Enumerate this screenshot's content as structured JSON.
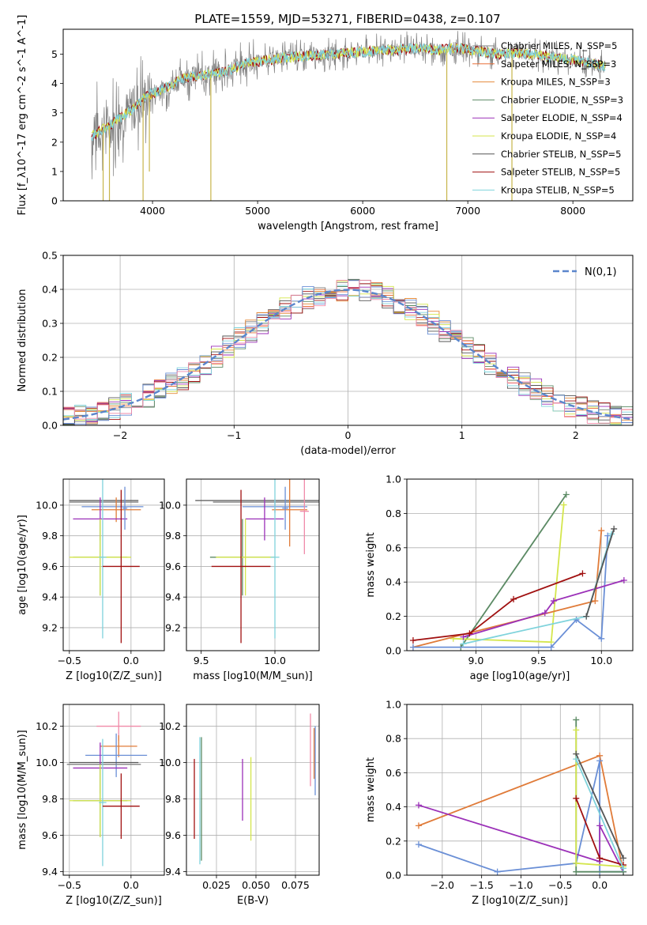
{
  "figure_title": "PLATE=1559, MJD=53271, FIBERID=0438, z=0.107",
  "colors": {
    "chabrier_miles": "#808080",
    "salpeter_miles": "#e8703a",
    "kroupa_miles": "#e58c3c",
    "chabrier_elodie": "#5b8a64",
    "salpeter_elodie": "#9b30b8",
    "kroupa_elodie": "#d4e64c",
    "chabrier_stelib": "#555555",
    "salpeter_stelib": "#a01010",
    "kroupa_stelib": "#7fd3dc",
    "orange": "#e07b39",
    "blue": "#6a8fd6",
    "pink": "#f08aa8",
    "normal": "#5b86cc"
  },
  "chart_data": [
    {
      "id": "spectrum",
      "type": "line",
      "xlabel": "wavelength [Angstrom, rest frame]",
      "ylabel": "Flux [f_λ10^-17 erg cm^-2 s^-1 A^-1]",
      "xlim": [
        3150,
        8570
      ],
      "ylim": [
        0,
        5.85
      ],
      "xticks": [
        "4000",
        "5000",
        "6000",
        "7000",
        "8000"
      ],
      "yticks": [
        "0",
        "1",
        "2",
        "3",
        "4",
        "5"
      ],
      "legend": [
        {
          "label": "Chabrier MILES, N_SSP=5",
          "color": "#808080"
        },
        {
          "label": "Salpeter MILES, N_SSP=3",
          "color": "#e8703a"
        },
        {
          "label": "Kroupa MILES, N_SSP=3",
          "color": "#e58c3c"
        },
        {
          "label": "Chabrier ELODIE, N_SSP=3",
          "color": "#5b8a64"
        },
        {
          "label": "Salpeter ELODIE, N_SSP=4",
          "color": "#9b30b8"
        },
        {
          "label": "Kroupa ELODIE, N_SSP=4",
          "color": "#d4e64c"
        },
        {
          "label": "Chabrier STELIB, N_SSP=5",
          "color": "#555555"
        },
        {
          "label": "Salpeter STELIB, N_SSP=5",
          "color": "#a01010"
        },
        {
          "label": "Kroupa STELIB, N_SSP=5",
          "color": "#7fd3dc"
        }
      ],
      "continuum": [
        [
          3420,
          2.2
        ],
        [
          3600,
          2.6
        ],
        [
          3800,
          3.1
        ],
        [
          3950,
          3.6
        ],
        [
          4100,
          3.8
        ],
        [
          4300,
          4.2
        ],
        [
          4500,
          4.3
        ],
        [
          4700,
          4.4
        ],
        [
          4900,
          4.7
        ],
        [
          5100,
          4.8
        ],
        [
          5300,
          4.9
        ],
        [
          5500,
          4.95
        ],
        [
          5700,
          5.0
        ],
        [
          5900,
          5.05
        ],
        [
          6100,
          5.1
        ],
        [
          6300,
          5.15
        ],
        [
          6500,
          5.2
        ],
        [
          6700,
          5.15
        ],
        [
          6900,
          5.2
        ],
        [
          7100,
          5.1
        ],
        [
          7300,
          5.0
        ],
        [
          7500,
          5.05
        ],
        [
          7700,
          4.95
        ],
        [
          7900,
          4.85
        ],
        [
          8100,
          4.75
        ],
        [
          8300,
          4.6
        ]
      ],
      "dips": [
        {
          "x": 3530,
          "y": 0
        },
        {
          "x": 3590,
          "y": 0
        },
        {
          "x": 3910,
          "y": 0
        },
        {
          "x": 3970,
          "y": 1.0
        },
        {
          "x": 4555,
          "y": 0
        },
        {
          "x": 6800,
          "y": 0
        },
        {
          "x": 7420,
          "y": 0
        }
      ]
    },
    {
      "id": "residuals",
      "type": "histogram",
      "xlabel": "(data-model)/error",
      "ylabel": "Normed distribution",
      "xlim": [
        -2.5,
        2.5
      ],
      "ylim": [
        0,
        0.5
      ],
      "xticks": [
        "-2",
        "-1",
        "0",
        "1",
        "2"
      ],
      "yticks": [
        "0.0",
        "0.1",
        "0.2",
        "0.3",
        "0.4",
        "0.5"
      ],
      "legend_label": "N(0,1)",
      "bin_width": 0.1,
      "series_colors": [
        "#808080",
        "#e8703a",
        "#e58c3c",
        "#5b8a64",
        "#9b30b8",
        "#d4e64c",
        "#555555",
        "#a01010",
        "#7fd3dc",
        "#6a8fd6",
        "#f08aa8"
      ]
    },
    {
      "id": "age_vs_Z",
      "type": "errorbar",
      "xlabel": "Z [log10(Z/Z_sun)]",
      "ylabel": "age [log10(age/yr)]",
      "xlim": [
        -0.55,
        0.27
      ],
      "ylim": [
        9.05,
        10.17
      ],
      "xticks": [
        "-0.5",
        "0.0"
      ],
      "yticks": [
        "9.2",
        "9.4",
        "9.6",
        "9.8",
        "10.0"
      ],
      "points": [
        {
          "x": -0.22,
          "y": 10.03,
          "xerr": 0.28,
          "yerr": 0.0,
          "color": "#555555"
        },
        {
          "x": -0.22,
          "y": 10.02,
          "xerr": 0.28,
          "yerr": 0.0,
          "color": "#808080"
        },
        {
          "x": -0.15,
          "y": 9.99,
          "xerr": 0.25,
          "yerr": 0.0,
          "color": "#6a8fd6"
        },
        {
          "x": -0.12,
          "y": 9.97,
          "xerr": 0.2,
          "yerr": 0.08,
          "color": "#e07b39"
        },
        {
          "x": -0.25,
          "y": 9.91,
          "xerr": 0.22,
          "yerr": 0.14,
          "color": "#9b30b8"
        },
        {
          "x": -0.25,
          "y": 9.66,
          "xerr": 0.22,
          "yerr": 0.25,
          "color": "#5b8a64"
        },
        {
          "x": -0.25,
          "y": 9.66,
          "xerr": 0.25,
          "yerr": 0.25,
          "color": "#d4e64c"
        },
        {
          "x": -0.23,
          "y": 9.66,
          "xerr": 0.03,
          "yerr": 0.53,
          "color": "#7fd3dc"
        },
        {
          "x": -0.08,
          "y": 9.6,
          "xerr": 0.15,
          "yerr": 0.5,
          "color": "#a01010"
        },
        {
          "x": -0.05,
          "y": 9.98,
          "xerr": 0.02,
          "yerr": 0.14,
          "color": "#6a8fd6"
        }
      ]
    },
    {
      "id": "age_vs_mass",
      "type": "errorbar",
      "xlabel": "mass [log10(M/M_sun)]",
      "ylabel": "",
      "xlim": [
        9.4,
        10.3
      ],
      "ylim": [
        9.05,
        10.17
      ],
      "xticks": [
        "9.5",
        "10.0"
      ],
      "yticks": [
        "9.2",
        "9.4",
        "9.6",
        "9.8",
        "10.0"
      ],
      "points": [
        {
          "x": 9.9,
          "y": 10.03,
          "xerr": 0.44,
          "yerr": 0.0,
          "color": "#555555"
        },
        {
          "x": 9.97,
          "y": 10.02,
          "xerr": 0.39,
          "yerr": 0.0,
          "color": "#808080"
        },
        {
          "x": 10.0,
          "y": 9.99,
          "xerr": 0.22,
          "yerr": 0.04,
          "color": "#6a8fd6"
        },
        {
          "x": 10.1,
          "y": 9.97,
          "xerr": 0.12,
          "yerr": 0.24,
          "color": "#e07b39"
        },
        {
          "x": 9.93,
          "y": 9.91,
          "xerr": 0.13,
          "yerr": 0.14,
          "color": "#9b30b8"
        },
        {
          "x": 9.78,
          "y": 9.66,
          "xerr": 0.22,
          "yerr": 0.25,
          "color": "#5b8a64"
        },
        {
          "x": 9.8,
          "y": 9.66,
          "xerr": 0.2,
          "yerr": 0.25,
          "color": "#d4e64c"
        },
        {
          "x": 10.0,
          "y": 9.66,
          "xerr": 0.03,
          "yerr": 0.53,
          "color": "#7fd3dc"
        },
        {
          "x": 9.77,
          "y": 9.6,
          "xerr": 0.2,
          "yerr": 0.5,
          "color": "#a01010"
        },
        {
          "x": 10.2,
          "y": 9.96,
          "xerr": 0.03,
          "yerr": 0.28,
          "color": "#f08aa8"
        },
        {
          "x": 10.07,
          "y": 9.98,
          "xerr": 0.02,
          "yerr": 0.14,
          "color": "#6a8fd6"
        }
      ]
    },
    {
      "id": "mass_weight_vs_age",
      "type": "line",
      "xlabel": "age [log10(age/yr)]",
      "ylabel": "mass weight",
      "xlim": [
        8.45,
        10.25
      ],
      "ylim": [
        0,
        1.0
      ],
      "xticks": [
        "9.0",
        "9.5",
        "10.0"
      ],
      "yticks": [
        "0.0",
        "0.2",
        "0.4",
        "0.6",
        "0.8",
        "1.0"
      ],
      "series": [
        {
          "color": "#5b8a64",
          "x": [
            8.88,
            9.72
          ],
          "y": [
            0.02,
            0.91
          ]
        },
        {
          "color": "#d4e64c",
          "x": [
            8.82,
            9.6,
            9.7
          ],
          "y": [
            0.07,
            0.05,
            0.85
          ]
        },
        {
          "color": "#e07b39",
          "x": [
            8.5,
            9.95,
            10.0
          ],
          "y": [
            0.02,
            0.29,
            0.7
          ]
        },
        {
          "color": "#6a8fd6",
          "x": [
            8.5,
            9.6,
            9.8,
            10.0,
            10.05
          ],
          "y": [
            0.02,
            0.02,
            0.18,
            0.07,
            0.67
          ]
        },
        {
          "color": "#9b30b8",
          "x": [
            8.9,
            9.55,
            9.62,
            10.18
          ],
          "y": [
            0.08,
            0.22,
            0.29,
            0.41
          ]
        },
        {
          "color": "#a01010",
          "x": [
            8.5,
            8.95,
            9.3,
            9.85
          ],
          "y": [
            0.06,
            0.1,
            0.3,
            0.45
          ]
        },
        {
          "color": "#7fd3dc",
          "x": [
            8.9,
            9.88,
            10.08
          ],
          "y": [
            0.04,
            0.2,
            0.68
          ]
        },
        {
          "color": "#555555",
          "x": [
            9.88,
            10.1
          ],
          "y": [
            0.2,
            0.71
          ]
        }
      ]
    },
    {
      "id": "mass_vs_Z",
      "type": "errorbar",
      "xlabel": "Z [log10(Z/Z_sun)]",
      "ylabel": "mass [log10(M/M_sun)]",
      "xlim": [
        -0.55,
        0.27
      ],
      "ylim": [
        9.38,
        10.32
      ],
      "xticks": [
        "-0.5",
        "0.0"
      ],
      "yticks": [
        "9.4",
        "9.6",
        "9.8",
        "10.0",
        "10.2"
      ],
      "points": [
        {
          "x": -0.1,
          "y": 10.2,
          "xerr": 0.18,
          "yerr": 0.08,
          "color": "#f08aa8"
        },
        {
          "x": -0.1,
          "y": 10.09,
          "xerr": 0.15,
          "yerr": 0.06,
          "color": "#e07b39"
        },
        {
          "x": -0.12,
          "y": 10.04,
          "xerr": 0.25,
          "yerr": 0.12,
          "color": "#6a8fd6"
        },
        {
          "x": -0.22,
          "y": 10.0,
          "xerr": 0.28,
          "yerr": 0.0,
          "color": "#555555"
        },
        {
          "x": -0.22,
          "y": 9.99,
          "xerr": 0.3,
          "yerr": 0.0,
          "color": "#808080"
        },
        {
          "x": -0.25,
          "y": 9.97,
          "xerr": 0.22,
          "yerr": 0.14,
          "color": "#9b30b8"
        },
        {
          "x": -0.25,
          "y": 9.79,
          "xerr": 0.22,
          "yerr": 0.2,
          "color": "#5b8a64"
        },
        {
          "x": -0.25,
          "y": 9.79,
          "xerr": 0.25,
          "yerr": 0.2,
          "color": "#d4e64c"
        },
        {
          "x": -0.23,
          "y": 9.78,
          "xerr": 0.03,
          "yerr": 0.35,
          "color": "#7fd3dc"
        },
        {
          "x": -0.08,
          "y": 9.76,
          "xerr": 0.15,
          "yerr": 0.18,
          "color": "#a01010"
        }
      ]
    },
    {
      "id": "mass_vs_ebv",
      "type": "errorbar",
      "xlabel": "E(B-V)",
      "ylabel": "",
      "xlim": [
        0.006,
        0.09
      ],
      "ylim": [
        9.38,
        10.32
      ],
      "xticks": [
        "0.025",
        "0.050",
        "0.075"
      ],
      "yticks": [
        "9.4",
        "9.6",
        "9.8",
        "10.0",
        "10.2"
      ],
      "points": [
        {
          "x": 0.011,
          "y": 9.8,
          "xerr": 0.0,
          "yerr": 0.22,
          "color": "#a01010"
        },
        {
          "x": 0.0145,
          "y": 9.79,
          "xerr": 0.0,
          "yerr": 0.35,
          "color": "#7fd3dc"
        },
        {
          "x": 0.0155,
          "y": 9.8,
          "xerr": 0.0,
          "yerr": 0.34,
          "color": "#5b8a64"
        },
        {
          "x": 0.0415,
          "y": 9.85,
          "xerr": 0.0,
          "yerr": 0.17,
          "color": "#9b30b8"
        },
        {
          "x": 0.0468,
          "y": 9.8,
          "xerr": 0.0,
          "yerr": 0.23,
          "color": "#d4e64c"
        },
        {
          "x": 0.0845,
          "y": 10.07,
          "xerr": 0.0,
          "yerr": 0.2,
          "color": "#f08aa8"
        },
        {
          "x": 0.0868,
          "y": 10.05,
          "xerr": 0.0,
          "yerr": 0.14,
          "color": "#e07b39"
        },
        {
          "x": 0.0875,
          "y": 10.01,
          "xerr": 0.0,
          "yerr": 0.19,
          "color": "#6a8fd6"
        }
      ]
    },
    {
      "id": "mass_weight_vs_Z",
      "type": "line",
      "xlabel": "Z [log10(Z/Z_sun)]",
      "ylabel": "mass weight",
      "xlim": [
        -2.45,
        0.42
      ],
      "ylim": [
        0,
        1.0
      ],
      "xticks": [
        "-2.0",
        "-1.5",
        "-1.0",
        "-0.5",
        "0.0"
      ],
      "yticks": [
        "0.0",
        "0.2",
        "0.4",
        "0.6",
        "0.8",
        "1.0"
      ],
      "series": [
        {
          "color": "#e07b39",
          "x": [
            -2.3,
            0.0,
            0.3
          ],
          "y": [
            0.29,
            0.7,
            0.02
          ]
        },
        {
          "color": "#6a8fd6",
          "x": [
            -2.3,
            -1.3,
            -0.3,
            0.0,
            0.0,
            0.3
          ],
          "y": [
            0.18,
            0.02,
            0.07,
            0.67,
            0.02,
            0.02
          ]
        },
        {
          "color": "#9b30b8",
          "x": [
            -2.3,
            0.0,
            0.0,
            0.3
          ],
          "y": [
            0.41,
            0.08,
            0.29,
            0.02
          ]
        },
        {
          "color": "#5b8a64",
          "x": [
            -0.3,
            -0.3,
            0.3
          ],
          "y": [
            0.91,
            0.02,
            0.02
          ]
        },
        {
          "color": "#d4e64c",
          "x": [
            -0.3,
            -0.3,
            0.3
          ],
          "y": [
            0.85,
            0.07,
            0.05
          ]
        },
        {
          "color": "#a01010",
          "x": [
            -0.3,
            0.0,
            0.3
          ],
          "y": [
            0.45,
            0.1,
            0.06
          ]
        },
        {
          "color": "#555555",
          "x": [
            -0.3,
            0.3
          ],
          "y": [
            0.71,
            0.1
          ]
        },
        {
          "color": "#7fd3dc",
          "x": [
            -0.3,
            0.3
          ],
          "y": [
            0.68,
            0.04
          ]
        }
      ]
    }
  ]
}
